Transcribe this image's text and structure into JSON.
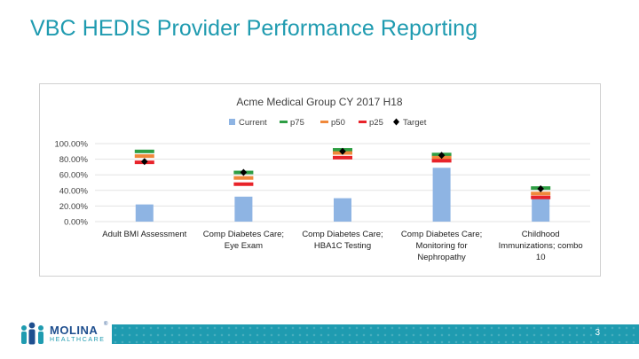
{
  "slide": {
    "title": "VBC HEDIS Provider Performance Reporting",
    "page_number": "3"
  },
  "logo": {
    "name": "MOLINA",
    "sub": "HEALTHCARE",
    "trademark": "®"
  },
  "colors": {
    "title": "#1f9bb0",
    "current": "#8eb4e3",
    "p75": "#2e9e44",
    "p50": "#f0883a",
    "p25": "#e8232a",
    "target": "#000000",
    "footer": "#1f9bb0"
  },
  "chart_data": {
    "type": "bar",
    "title": "Acme Medical Group CY 2017 H18",
    "legend": [
      "Current",
      "p75",
      "p50",
      "p25",
      "Target"
    ],
    "legend_position": "top",
    "categories": [
      [
        "Adult BMI Assessment"
      ],
      [
        "Comp Diabetes Care;",
        "Eye Exam"
      ],
      [
        "Comp Diabetes Care;",
        "HBA1C Testing"
      ],
      [
        "Comp Diabetes Care;",
        "Monitoring for",
        "Nephropathy"
      ],
      [
        "Childhood",
        "Immunizations; combo",
        "10"
      ]
    ],
    "y_ticks": [
      "100.00%",
      "80.00%",
      "60.00%",
      "40.00%",
      "20.00%",
      "0.00%"
    ],
    "ylim": [
      0,
      100
    ],
    "grid": true,
    "series": [
      {
        "name": "Current",
        "kind": "bar",
        "values": [
          22,
          32,
          30,
          69,
          29
        ]
      },
      {
        "name": "p75",
        "kind": "marker",
        "values": [
          90,
          63,
          92,
          86,
          43
        ]
      },
      {
        "name": "p50",
        "kind": "marker",
        "values": [
          84,
          56,
          88,
          82,
          36
        ]
      },
      {
        "name": "p25",
        "kind": "marker",
        "values": [
          76,
          48,
          82,
          78,
          31
        ]
      },
      {
        "name": "Target",
        "kind": "point",
        "values": [
          77,
          63,
          90,
          85,
          42
        ]
      }
    ]
  }
}
